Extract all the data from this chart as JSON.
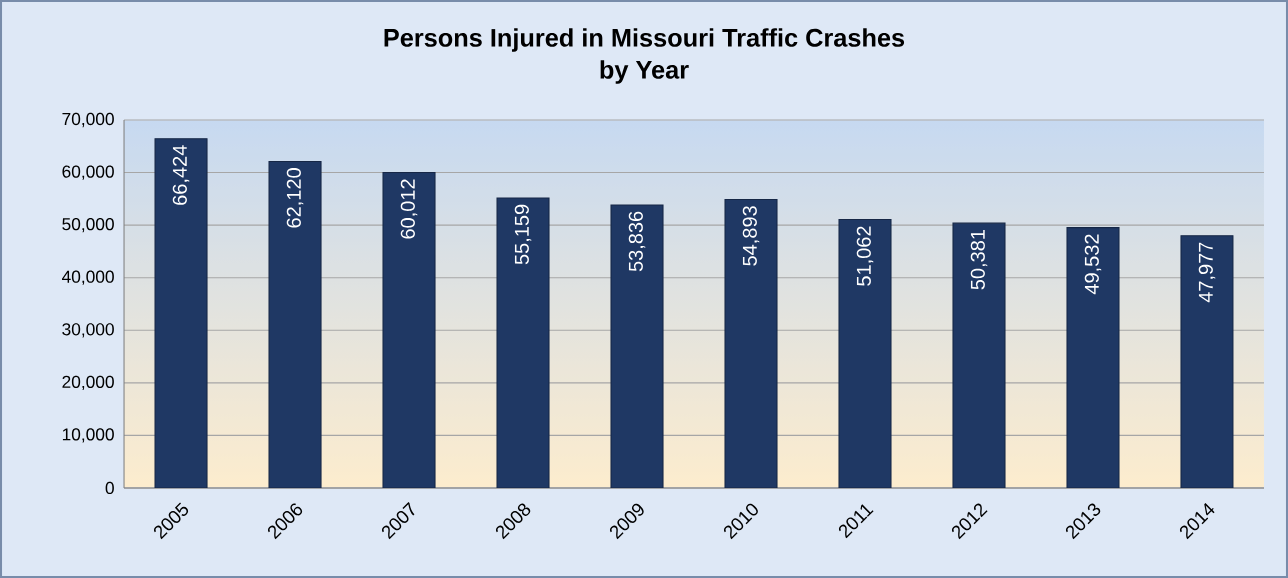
{
  "chart_data": {
    "type": "bar",
    "title": "Persons Injured in Missouri Traffic Crashes\nby Year",
    "categories": [
      "2005",
      "2006",
      "2007",
      "2008",
      "2009",
      "2010",
      "2011",
      "2012",
      "2013",
      "2014"
    ],
    "values": [
      66424,
      62120,
      60012,
      55159,
      53836,
      54893,
      51062,
      50381,
      49532,
      47977
    ],
    "value_labels": [
      "66,424",
      "62,120",
      "60,012",
      "55,159",
      "53,836",
      "54,893",
      "51,062",
      "50,381",
      "49,532",
      "47,977"
    ],
    "color": "#1f3864",
    "ylim": [
      0,
      70000
    ],
    "yticks": [
      {
        "value": 0,
        "label": "0"
      },
      {
        "value": 10000,
        "label": "10,000"
      },
      {
        "value": 20000,
        "label": "20,000"
      },
      {
        "value": 30000,
        "label": "30,000"
      },
      {
        "value": 40000,
        "label": "40,000"
      },
      {
        "value": 50000,
        "label": "50,000"
      },
      {
        "value": 60000,
        "label": "60,000"
      },
      {
        "value": 70000,
        "label": "70,000"
      }
    ],
    "grid": "y"
  }
}
